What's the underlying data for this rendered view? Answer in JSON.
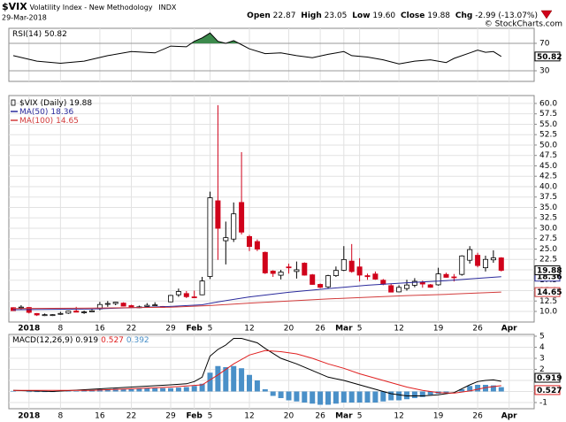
{
  "header": {
    "symbol": "$VIX",
    "name": "Volatility Index - New Methodology",
    "exchange": "INDX",
    "date": "29-Mar-2018",
    "copyright": "© StockCharts.com",
    "open_label": "Open",
    "open": 22.87,
    "high_label": "High",
    "high": 23.05,
    "low_label": "Low",
    "low": "19.60",
    "close_label": "Close",
    "close": 19.88,
    "change_label": "Chg",
    "change": -2.99,
    "change_pct": "(-13.07%)"
  },
  "chart_data": [
    {
      "type": "rsi",
      "title": "RSI(14)",
      "ylim": [
        14.5,
        91.9
      ],
      "yticks": [
        30,
        70
      ],
      "overbought": 70,
      "fill_color": "#3c8a4c",
      "grid": true,
      "series": [
        {
          "color": "#000000",
          "x": [
            0,
            3,
            6,
            9,
            12,
            15,
            18,
            20,
            22,
            23,
            24,
            25,
            26,
            27,
            28,
            29,
            30,
            32,
            34,
            36,
            38,
            40,
            42,
            43,
            45,
            47,
            49,
            51,
            53,
            55,
            56,
            58,
            59,
            60,
            61,
            62
          ],
          "values": [
            52,
            44,
            41,
            44,
            52,
            58,
            56,
            66,
            65,
            73,
            78,
            85,
            73,
            70,
            74,
            68,
            62,
            55,
            56,
            52,
            49,
            54,
            58,
            52,
            50,
            46,
            40,
            44,
            46,
            42,
            48,
            56,
            60,
            57,
            58,
            50.82
          ]
        }
      ]
    },
    {
      "type": "candlestick",
      "title": "$VIX (Daily)",
      "up_color": "#ffffff",
      "down_color": "#d0021b",
      "ylim": [
        7.45,
        61.9
      ],
      "grid": true,
      "yticks": [
        {
          "value": 10,
          "label": "10.0"
        },
        12.5,
        {
          "value": 15,
          "label": "15.0"
        },
        17.5,
        {
          "value": 20,
          "label": "20.0"
        },
        22.5,
        {
          "value": 25,
          "label": "25.0"
        },
        27.5,
        {
          "value": 30,
          "label": "30.0"
        },
        32.5,
        {
          "value": 35,
          "label": "35.0"
        },
        37.5,
        {
          "value": 40,
          "label": "40.0"
        },
        42.5,
        {
          "value": 45,
          "label": "45.0"
        },
        47.5,
        {
          "value": 50,
          "label": "50.0"
        },
        52.5,
        {
          "value": 55,
          "label": "55.0"
        },
        57.5,
        {
          "value": 60,
          "label": "60.0"
        }
      ],
      "xticks": [
        {
          "value": 2,
          "label": "2018"
        },
        {
          "value": 6,
          "label": "8"
        },
        {
          "value": 11,
          "label": "16"
        },
        {
          "value": 15,
          "label": "22"
        },
        {
          "value": 20,
          "label": "29"
        },
        {
          "value": 23,
          "label": "Feb"
        },
        {
          "value": 25,
          "label": "5"
        },
        {
          "value": 30,
          "label": "12"
        },
        {
          "value": 35,
          "label": "20"
        },
        {
          "value": 39,
          "label": "26"
        },
        {
          "value": 42,
          "label": "Mar"
        },
        {
          "value": 44,
          "label": "5"
        },
        {
          "value": 49,
          "label": "12"
        },
        {
          "value": 54,
          "label": "19"
        },
        {
          "value": 59,
          "label": "26"
        },
        {
          "value": 63,
          "label": "Apr"
        }
      ],
      "open": [
        10.9,
        10.9,
        10.95,
        9.5,
        9.0,
        9.2,
        9.5,
        9.6,
        10.1,
        9.8,
        9.9,
        10.6,
        11.7,
        11.9,
        12.0,
        11.4,
        11.0,
        11.2,
        11.5,
        11.2,
        12.3,
        14.0,
        14.3,
        13.5,
        14.0,
        18.4,
        36.6,
        27.0,
        27.4,
        36.2,
        28.0,
        26.8,
        24.2,
        19.7,
        18.7,
        20.7,
        19.6,
        21.6,
        18.8,
        16.5,
        15.9,
        18.6,
        19.9,
        22.1,
        20.7,
        18.6,
        19.0,
        17.5,
        16.2,
        14.7,
        15.5,
        16.3,
        17.0,
        16.4,
        16.4,
        18.9,
        18.3,
        18.9,
        22.3,
        23.5,
        20.5,
        22.4,
        22.87
      ],
      "high": [
        11.0,
        11.5,
        11.0,
        9.6,
        9.5,
        9.3,
        9.9,
        10.2,
        11.1,
        10.2,
        10.5,
        12.3,
        12.5,
        12.3,
        12.2,
        11.6,
        11.4,
        12.0,
        12.2,
        11.3,
        14.0,
        15.5,
        14.9,
        15.0,
        18.3,
        38.8,
        59.6,
        31.6,
        36.2,
        48.3,
        28.4,
        27.3,
        24.4,
        19.9,
        20.0,
        21.5,
        22.0,
        21.8,
        19.0,
        16.7,
        18.8,
        20.8,
        25.7,
        26.2,
        22.8,
        19.1,
        19.6,
        17.8,
        16.7,
        16.3,
        17.6,
        18.0,
        17.4,
        16.6,
        20.5,
        19.3,
        19.0,
        23.5,
        25.7,
        24.1,
        23.4,
        24.7,
        23.05
      ],
      "low": [
        10.1,
        10.4,
        9.5,
        8.9,
        8.9,
        8.9,
        9.2,
        9.4,
        9.8,
        9.4,
        9.8,
        10.3,
        11.1,
        11.5,
        11.2,
        10.9,
        10.8,
        11.0,
        11.3,
        10.9,
        12.2,
        13.5,
        13.2,
        13.2,
        13.9,
        17.8,
        22.4,
        21.3,
        26.7,
        28.5,
        24.5,
        24.5,
        19.0,
        18.3,
        17.7,
        19.1,
        17.9,
        18.6,
        16.4,
        15.6,
        15.6,
        18.3,
        19.7,
        19.3,
        17.2,
        17.6,
        17.6,
        16.3,
        14.6,
        14.6,
        15.0,
        15.8,
        15.7,
        15.7,
        16.2,
        18.1,
        17.2,
        18.6,
        21.5,
        20.6,
        19.6,
        21.7,
        19.6
      ],
      "close": [
        10.2,
        11.04,
        9.77,
        9.15,
        9.22,
        9.22,
        9.52,
        10.08,
        9.82,
        9.88,
        10.16,
        11.66,
        11.91,
        12.22,
        11.27,
        11.03,
        11.1,
        11.47,
        11.58,
        11.08,
        13.84,
        14.79,
        13.54,
        13.47,
        17.31,
        37.32,
        29.98,
        27.73,
        33.46,
        29.06,
        25.61,
        24.97,
        19.26,
        19.13,
        19.46,
        20.6,
        20.02,
        18.72,
        16.49,
        15.8,
        18.59,
        19.85,
        22.47,
        19.59,
        18.73,
        18.36,
        17.76,
        16.54,
        14.64,
        15.78,
        16.35,
        17.23,
        16.59,
        15.8,
        19.02,
        18.2,
        18.2,
        23.34,
        24.87,
        21.03,
        22.5,
        22.87,
        19.88
      ],
      "series": [
        {
          "name": "MA(50)",
          "color": "#2a2a9c",
          "x": [
            0,
            10,
            20,
            24,
            26,
            30,
            35,
            40,
            45,
            50,
            55,
            58,
            62
          ],
          "values": [
            10.4,
            10.6,
            11.2,
            11.6,
            12.3,
            13.5,
            14.6,
            15.5,
            16.3,
            16.9,
            17.4,
            17.8,
            18.36
          ]
        },
        {
          "name": "MA(100)",
          "color": "#d23b3b",
          "x": [
            0,
            10,
            20,
            25,
            30,
            35,
            40,
            45,
            50,
            55,
            62
          ],
          "values": [
            10.7,
            10.8,
            11.0,
            11.4,
            12.0,
            12.5,
            13.0,
            13.4,
            13.8,
            14.1,
            14.65
          ]
        }
      ]
    },
    {
      "type": "macd",
      "title": "MACD(12,26,9)",
      "ylim": [
        -1.56,
        5.16
      ],
      "yticks": [
        -1,
        0,
        1,
        2,
        3,
        4,
        5
      ],
      "grid": true,
      "series": [
        {
          "color": "#000000",
          "x": [
            0,
            5,
            10,
            15,
            20,
            22,
            23,
            24,
            25,
            26,
            27,
            28,
            29,
            30,
            31,
            32,
            34,
            36,
            38,
            40,
            42,
            44,
            46,
            48,
            50,
            52,
            54,
            56,
            58,
            59,
            60,
            61,
            62
          ],
          "values": [
            0.1,
            0.0,
            0.2,
            0.4,
            0.6,
            0.7,
            0.9,
            1.3,
            3.2,
            3.8,
            4.2,
            4.8,
            4.8,
            4.6,
            4.4,
            3.9,
            3.0,
            2.5,
            1.9,
            1.3,
            1.0,
            0.6,
            0.2,
            -0.2,
            -0.4,
            -0.4,
            -0.3,
            -0.1,
            0.6,
            0.9,
            1.0,
            1.05,
            0.919
          ]
        },
        {
          "color": "#e02020",
          "x": [
            0,
            10,
            20,
            24,
            26,
            28,
            30,
            32,
            34,
            36,
            38,
            40,
            42,
            44,
            46,
            48,
            50,
            52,
            54,
            56,
            58,
            60,
            62
          ],
          "values": [
            0.1,
            0.1,
            0.4,
            0.6,
            1.5,
            2.5,
            3.3,
            3.7,
            3.6,
            3.4,
            3.0,
            2.5,
            2.1,
            1.6,
            1.2,
            0.8,
            0.4,
            0.1,
            -0.1,
            -0.15,
            0.05,
            0.35,
            0.527
          ]
        }
      ],
      "histogram": {
        "color": "#4a90c8",
        "values": [
          0.05,
          0,
          -0.05,
          -0.05,
          -0.05,
          -0.05,
          0,
          0.05,
          0.05,
          0.1,
          0.1,
          0.2,
          0.2,
          0.25,
          0.2,
          0.2,
          0.25,
          0.3,
          0.3,
          0.3,
          0.3,
          0.35,
          0.4,
          0.5,
          0.7,
          1.7,
          2.3,
          2.2,
          2.3,
          2.1,
          1.5,
          1.0,
          0.2,
          -0.4,
          -0.6,
          -0.8,
          -0.9,
          -1.0,
          -1.1,
          -1.2,
          -1.2,
          -1.1,
          -1.0,
          -1.0,
          -1.0,
          -1.0,
          -1.0,
          -0.9,
          -0.8,
          -0.8,
          -0.7,
          -0.6,
          -0.5,
          -0.3,
          -0.2,
          -0.1,
          0,
          0.2,
          0.5,
          0.6,
          0.6,
          0.55,
          0.392
        ]
      }
    }
  ]
}
